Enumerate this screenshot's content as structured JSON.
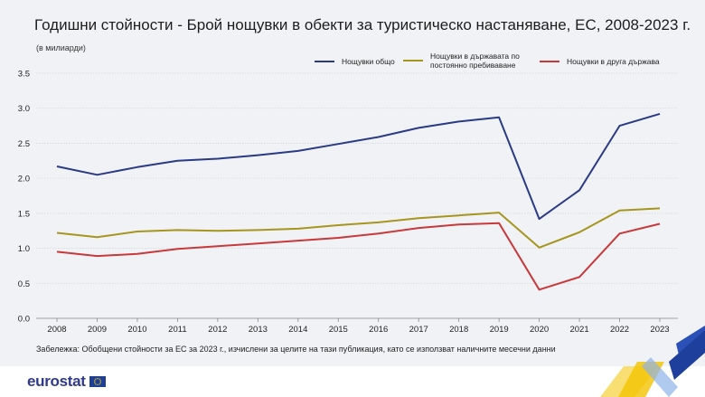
{
  "header": {
    "title": "Годишни стойности - Брой нощувки в обекти за туристическо настаняване, ЕС, 2008-2023 г.",
    "unit_note": "(в милиарди)"
  },
  "note": "Забележка: Обобщени стойности за ЕС за 2023 г., изчислени за целите на тази публикация, като се използват наличните месечни данни",
  "footer": {
    "logo_text": "eurostat"
  },
  "colors": {
    "total": "#2b3a85",
    "domestic": "#a6951e",
    "foreign": "#c8393b",
    "grid": "#d4d7dc"
  },
  "chart_data": {
    "type": "line",
    "x": [
      "2008",
      "2009",
      "2010",
      "2011",
      "2012",
      "2013",
      "2014",
      "2015",
      "2016",
      "2017",
      "2018",
      "2019",
      "2020",
      "2021",
      "2022",
      "2023"
    ],
    "ylim": [
      0,
      3.5
    ],
    "yticks": [
      "0.0",
      "0.5",
      "1.0",
      "1.5",
      "2.0",
      "2.5",
      "3.0",
      "3.5"
    ],
    "grid": true,
    "legend_position": "top-right",
    "series": [
      {
        "name": "Нощувки общо",
        "color": "#2b3a85",
        "values": [
          2.17,
          2.05,
          2.16,
          2.25,
          2.28,
          2.33,
          2.39,
          2.49,
          2.59,
          2.72,
          2.81,
          2.87,
          1.42,
          1.83,
          2.75,
          2.92
        ]
      },
      {
        "name": "Нощувки в държавата по постоянно пребиваване",
        "color": "#a6951e",
        "values": [
          1.22,
          1.16,
          1.24,
          1.26,
          1.25,
          1.26,
          1.28,
          1.33,
          1.37,
          1.43,
          1.47,
          1.51,
          1.01,
          1.23,
          1.54,
          1.57
        ]
      },
      {
        "name": "Нощувки в друга държава",
        "color": "#c8393b",
        "values": [
          0.95,
          0.89,
          0.92,
          0.99,
          1.03,
          1.07,
          1.11,
          1.15,
          1.21,
          1.29,
          1.34,
          1.36,
          0.41,
          0.59,
          1.21,
          1.35
        ]
      }
    ]
  }
}
